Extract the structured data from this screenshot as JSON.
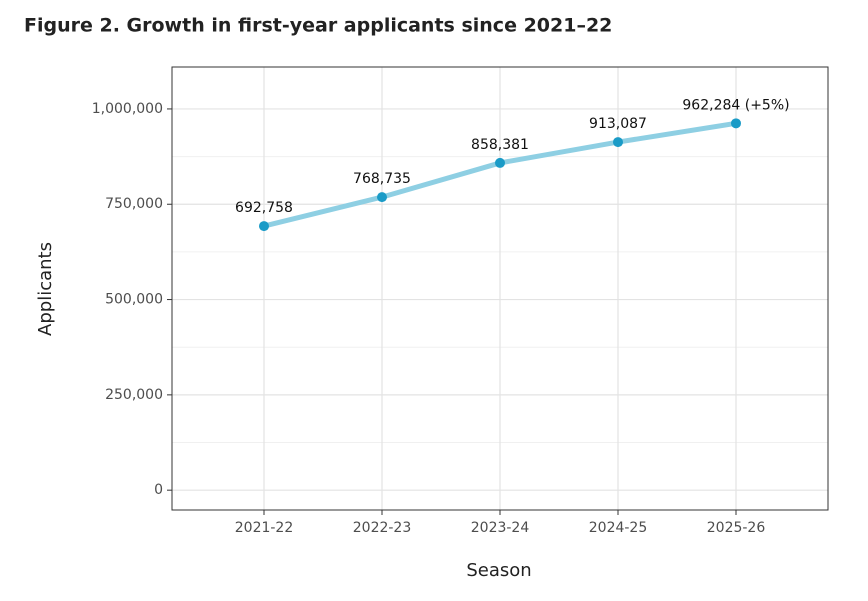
{
  "chart_data": {
    "type": "line",
    "title": "Figure 2. Growth in first-year applicants since 2021–22",
    "x_label": "Season",
    "y_label": "Applicants",
    "categories": [
      "2021-22",
      "2022-23",
      "2023-24",
      "2024-25",
      "2025-26"
    ],
    "values": [
      692758,
      768735,
      858381,
      913087,
      962284
    ],
    "value_labels": [
      "692,758",
      "768,735",
      "858,381",
      "913,087",
      "962,284 (+5%)"
    ],
    "line_color": "#8ecfe3",
    "point_color": "#1a9bc7",
    "ylim": [
      -52000,
      1110000
    ],
    "yticks": [
      0,
      {
        "value": 250000,
        "label": "250,000"
      },
      {
        "value": 500000,
        "label": "500,000"
      },
      {
        "value": 750000,
        "label": "750,000"
      },
      {
        "value": 1000000,
        "label": "1,000,000"
      }
    ],
    "grid": true,
    "minor_grid": true
  }
}
